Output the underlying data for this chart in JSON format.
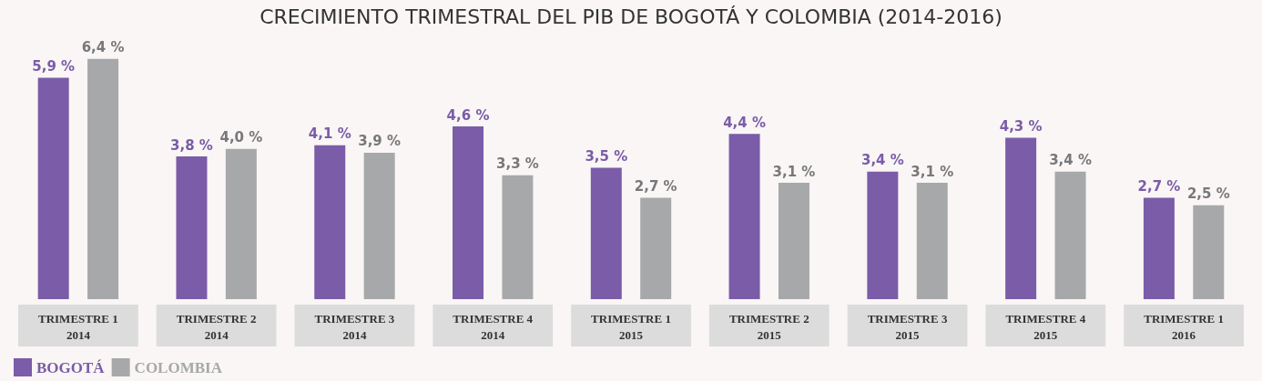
{
  "chart_data": {
    "type": "bar",
    "title": "CRECIMIENTO TRIMESTRAL DEL PIB DE BOGOTÁ Y COLOMBIA (2014-2016)",
    "categories": [
      "TRIMESTRE 1\n2014",
      "TRIMESTRE 2\n2014",
      "TRIMESTRE 3\n2014",
      "TRIMESTRE 4\n2014",
      "TRIMESTRE 1\n2015",
      "TRIMESTRE 2\n2015",
      "TRIMESTRE 3\n2015",
      "TRIMESTRE 4\n2015",
      "TRIMESTRE 1\n2016"
    ],
    "series": [
      {
        "name": "BOGOTÁ",
        "color": "#7b5ca8",
        "values": [
          5.9,
          3.8,
          4.1,
          4.6,
          3.5,
          4.4,
          3.4,
          4.3,
          2.7
        ],
        "value_labels": [
          "5,9 %",
          "3,8 %",
          "4,1 %",
          "4,6 %",
          "3,5 %",
          "4,4 %",
          "3,4 %",
          "4,3 %",
          "2,7 %"
        ]
      },
      {
        "name": "COLOMBIA",
        "color": "#a7a8aa",
        "values": [
          6.4,
          4.0,
          3.9,
          3.3,
          2.7,
          3.1,
          3.1,
          3.4,
          2.5
        ],
        "value_labels": [
          "6,4 %",
          "4,0 %",
          "3,9 %",
          "3,3 %",
          "2,7 %",
          "3,1 %",
          "3,1 %",
          "3,4 %",
          "2,5 %"
        ]
      }
    ],
    "legend": "bottom left"
  }
}
